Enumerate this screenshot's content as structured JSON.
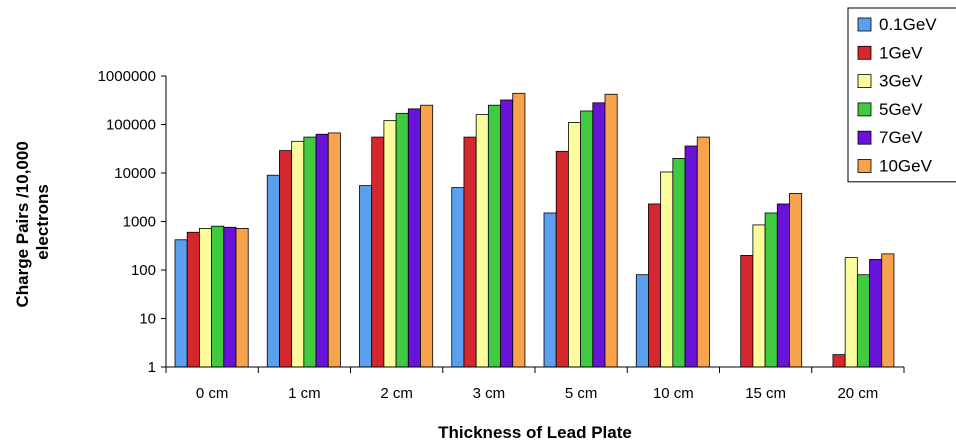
{
  "chart_data": {
    "type": "bar",
    "title": "",
    "xlabel": "Thickness of Lead Plate",
    "ylabel_lines": [
      "Charge Pairs /10,000",
      "electrons"
    ],
    "yscale": "log",
    "ylim": [
      1,
      1000000
    ],
    "ytick_labels": [
      "1",
      "10",
      "100",
      "1000",
      "10000",
      "100000",
      "1000000"
    ],
    "grid": false,
    "legend_position": "top-right",
    "categories": [
      "0 cm",
      "1 cm",
      "2 cm",
      "3 cm",
      "5 cm",
      "10 cm",
      "15 cm",
      "20 cm"
    ],
    "series": [
      {
        "name": "0.1GeV",
        "color": "#5aa0ef",
        "values": [
          420,
          9000,
          5500,
          5000,
          1500,
          80,
          null,
          null
        ]
      },
      {
        "name": "1GeV",
        "color": "#d4272e",
        "values": [
          600,
          29000,
          55000,
          55000,
          28000,
          2300,
          200,
          1.8
        ]
      },
      {
        "name": "3GeV",
        "color": "#fdfc9c",
        "values": [
          720,
          45000,
          120000,
          160000,
          110000,
          10500,
          850,
          180
        ]
      },
      {
        "name": "5GeV",
        "color": "#3fca3f",
        "values": [
          800,
          55000,
          170000,
          250000,
          190000,
          20000,
          1500,
          80
        ]
      },
      {
        "name": "7GeV",
        "color": "#6a13d8",
        "values": [
          760,
          63000,
          210000,
          320000,
          280000,
          36000,
          2300,
          165
        ]
      },
      {
        "name": "10GeV",
        "color": "#f7a34d",
        "values": [
          720,
          67000,
          250000,
          440000,
          420000,
          55000,
          3800,
          215
        ]
      }
    ]
  }
}
